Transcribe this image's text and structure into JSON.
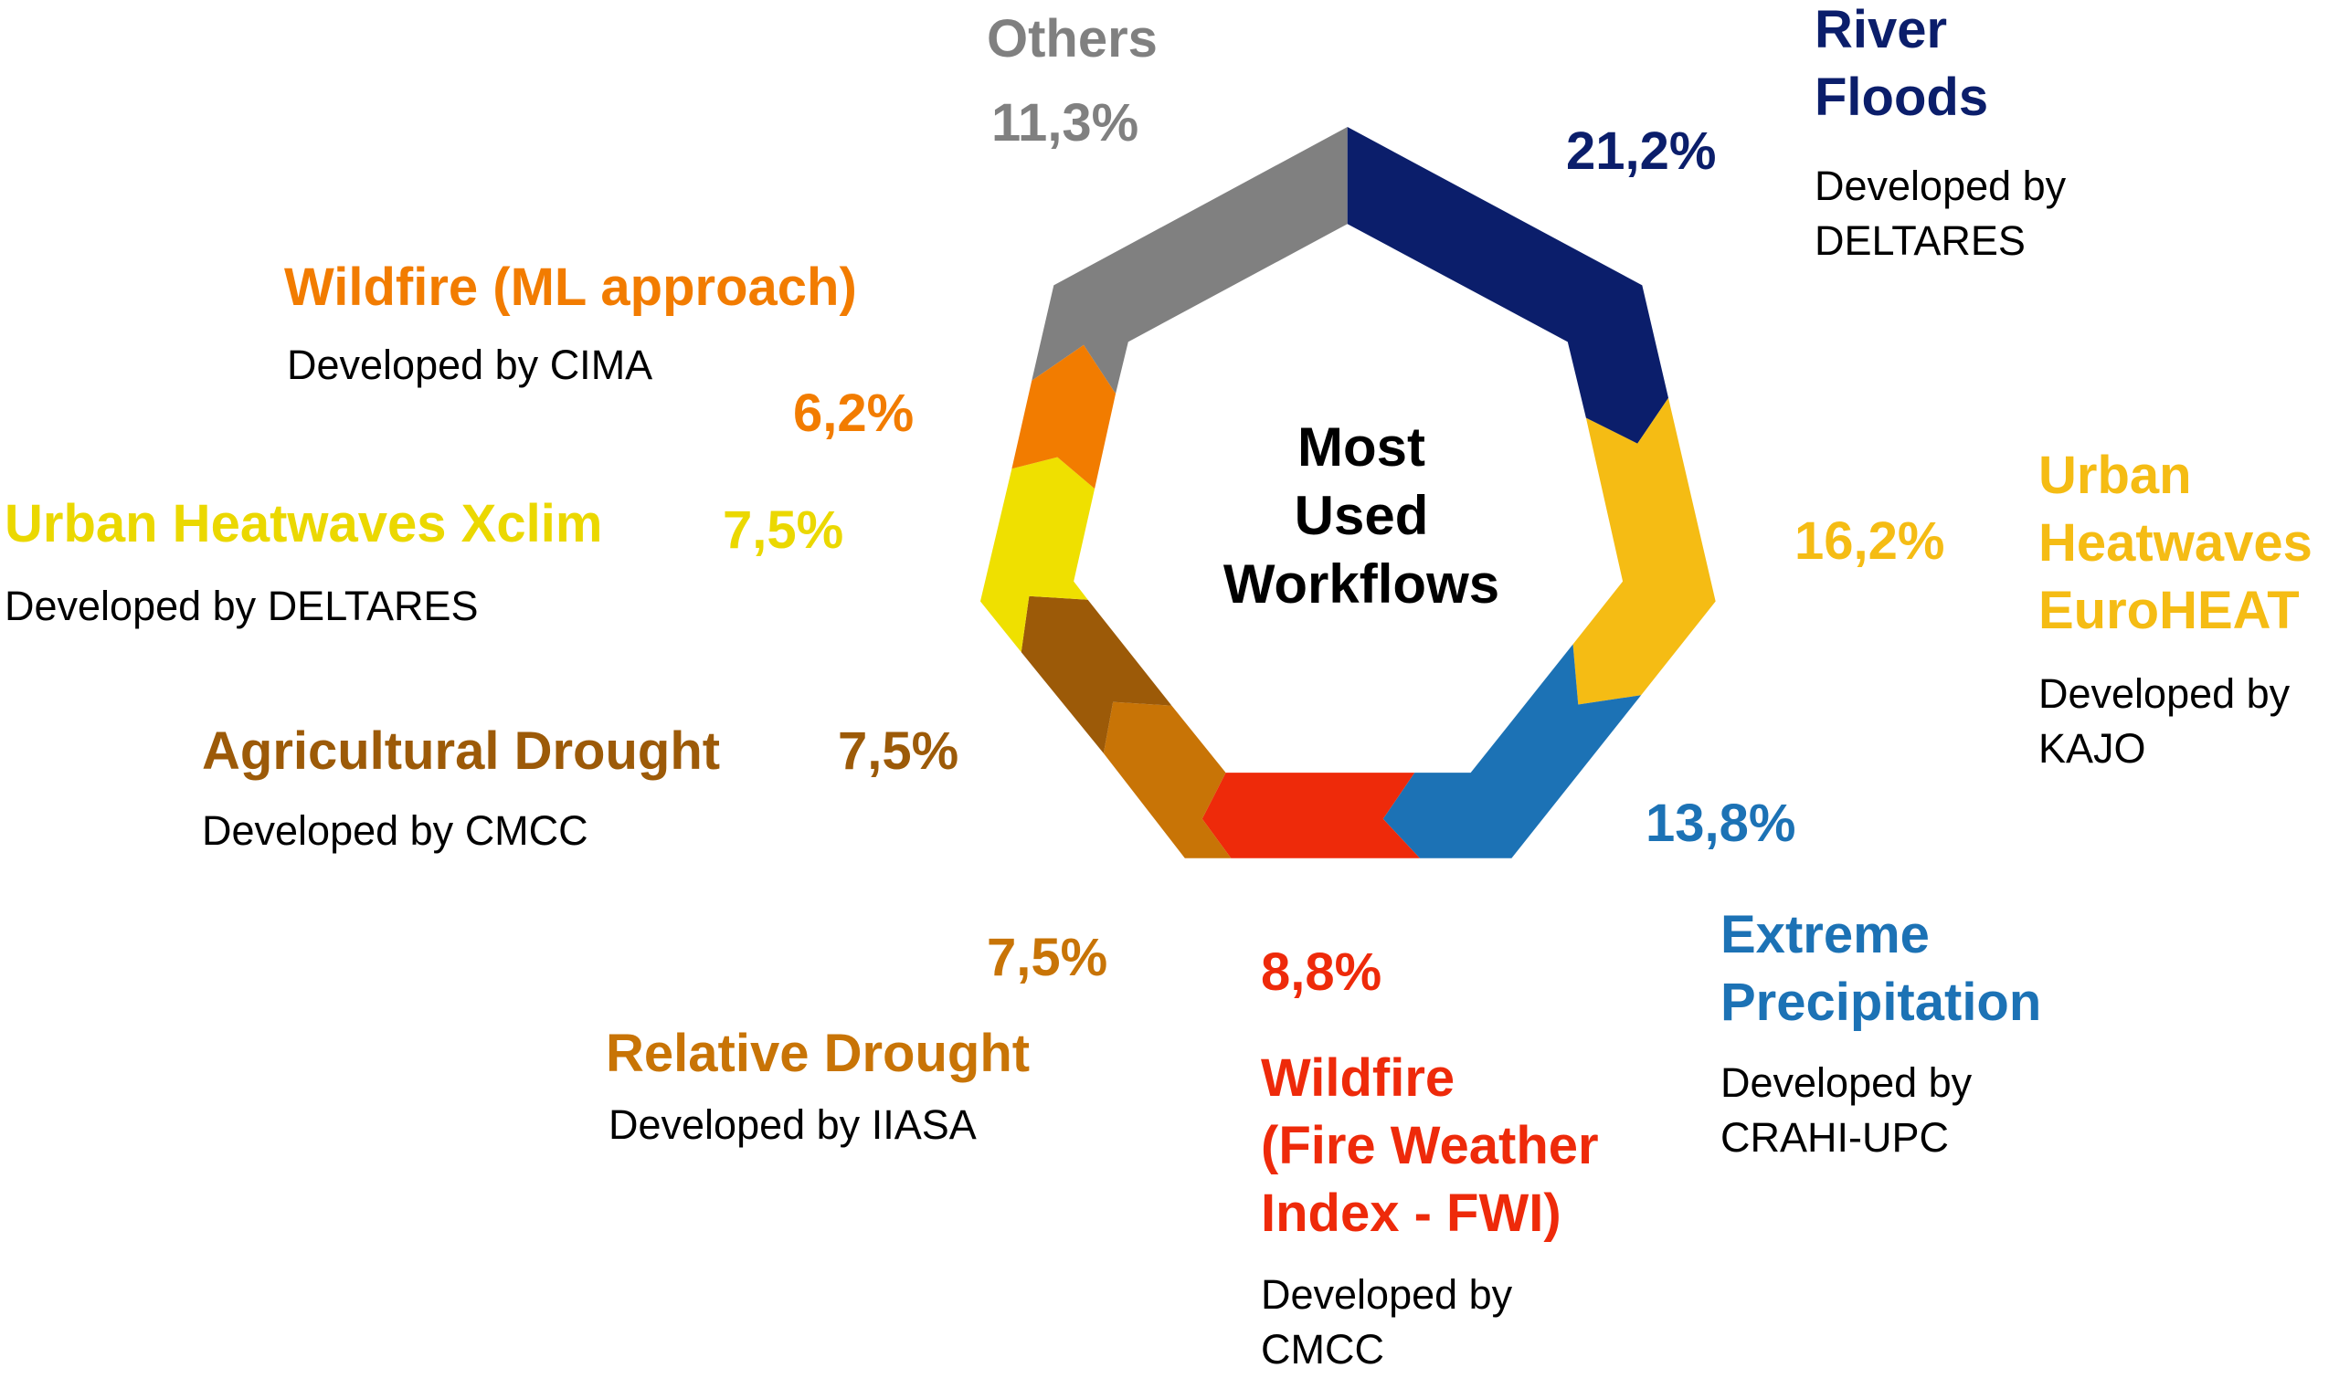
{
  "chart_data": {
    "type": "pie",
    "title": "Most Used Workflows",
    "title_lines": [
      "Most",
      "Used",
      "Workflows"
    ],
    "unit": "%",
    "segments": [
      {
        "name": "River Floods",
        "name_lines": [
          "River",
          "Floods"
        ],
        "value": 21.2,
        "label": "21,2%",
        "developer_lines": [
          "Developed by",
          "DELTARES"
        ],
        "color": "#0B1E6B"
      },
      {
        "name": "Urban Heatwaves EuroHEAT",
        "name_lines": [
          "Urban",
          "Heatwaves",
          "EuroHEAT"
        ],
        "value": 16.2,
        "label": "16,2%",
        "developer_lines": [
          "Developed by",
          "KAJO"
        ],
        "color": "#F5BC14"
      },
      {
        "name": "Extreme Precipitation",
        "name_lines": [
          "Extreme",
          "Precipitation"
        ],
        "value": 13.8,
        "label": "13,8%",
        "developer_lines": [
          "Developed by",
          "CRAHI-UPC"
        ],
        "color": "#1C72B5"
      },
      {
        "name": "Wildfire (Fire Weather Index - FWI)",
        "name_lines": [
          "Wildfire",
          "(Fire Weather",
          "Index - FWI)"
        ],
        "value": 8.8,
        "label": "8,8%",
        "developer_lines": [
          "Developed by",
          "CMCC"
        ],
        "color": "#EE2A0A"
      },
      {
        "name": "Relative Drought",
        "name_lines": [
          "Relative Drought"
        ],
        "value": 7.5,
        "label": "7,5%",
        "developer_lines": [
          "Developed by IIASA"
        ],
        "color": "#C87406"
      },
      {
        "name": "Agricultural Drought",
        "name_lines": [
          "Agricultural Drought"
        ],
        "value": 7.5,
        "label": "7,5%",
        "developer_lines": [
          "Developed by CMCC"
        ],
        "color": "#9C5A08"
      },
      {
        "name": "Urban Heatwaves Xclim",
        "name_lines": [
          "Urban Heatwaves Xclim"
        ],
        "value": 7.5,
        "label": "7,5%",
        "developer_lines": [
          "Developed by DELTARES"
        ],
        "color": "#EFE000"
      },
      {
        "name": "Wildfire (ML approach)",
        "name_lines": [
          "Wildfire (ML approach)"
        ],
        "value": 6.2,
        "label": "6,2%",
        "developer_lines": [
          "Developed by CIMA"
        ],
        "color": "#F27C00"
      },
      {
        "name": "Others",
        "name_lines": [
          "Others"
        ],
        "value": 11.3,
        "label": "11,3%",
        "developer_lines": [],
        "color": "#808080"
      }
    ]
  }
}
